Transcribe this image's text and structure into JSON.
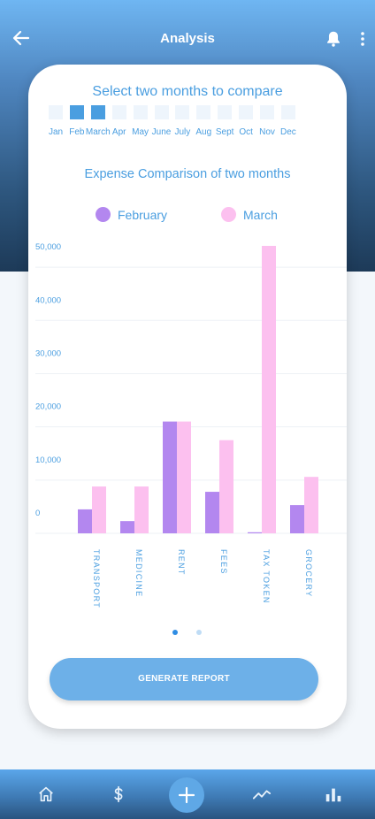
{
  "header": {
    "title": "Analysis",
    "icons": [
      "back-arrow-icon",
      "bell-icon",
      "more-vertical-icon"
    ]
  },
  "month_selector": {
    "heading": "Select two months to compare",
    "months": [
      {
        "label": "Jan",
        "selected": false
      },
      {
        "label": "Feb",
        "selected": true
      },
      {
        "label": "March",
        "selected": true
      },
      {
        "label": "Apr",
        "selected": false
      },
      {
        "label": "May",
        "selected": false
      },
      {
        "label": "June",
        "selected": false
      },
      {
        "label": "July",
        "selected": false
      },
      {
        "label": "Aug",
        "selected": false
      },
      {
        "label": "Sept",
        "selected": false
      },
      {
        "label": "Oct",
        "selected": false
      },
      {
        "label": "Nov",
        "selected": false
      },
      {
        "label": "Dec",
        "selected": false
      }
    ]
  },
  "chart_data": {
    "type": "bar",
    "title": "Expense Comparison of two months",
    "categories": [
      "TRANSPORT",
      "MEDICINE",
      "RENT",
      "FEES",
      "TAX TOKEN",
      "GROCERY"
    ],
    "series": [
      {
        "name": "February",
        "color": "#b387ef",
        "values": [
          4500,
          2300,
          21000,
          7800,
          200,
          5300
        ]
      },
      {
        "name": "March",
        "color": "#fcc0ef",
        "values": [
          8800,
          8800,
          21000,
          17500,
          54000,
          10600
        ]
      }
    ],
    "y_ticks": [
      "0",
      "10,000",
      "20,000",
      "30,000",
      "40,000",
      "50,000"
    ],
    "ylim": [
      0,
      54000
    ],
    "grid": true,
    "legend_position": "top"
  },
  "pagination": {
    "count": 2,
    "active": 0
  },
  "actions": {
    "generate_report": "GENERATE REPORT"
  },
  "bottom_nav": {
    "items": [
      "home-icon",
      "dollar-icon",
      "add-icon",
      "trend-icon",
      "bar-chart-icon"
    ]
  },
  "colors": {
    "accent": "#4a9ee0",
    "button": "#6db0e8",
    "february": "#b387ef",
    "march": "#fcc0ef"
  }
}
